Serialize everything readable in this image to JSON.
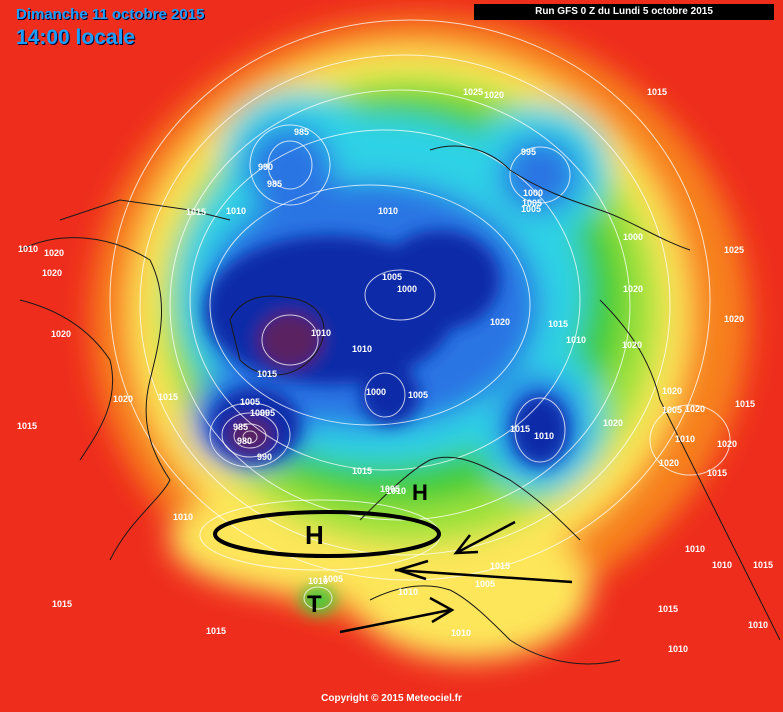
{
  "header": {
    "date": "Dimanche 11 octobre 2015",
    "time": "14:00 locale",
    "run": "Run GFS 0 Z du Lundi 5 octobre 2015"
  },
  "footer": {
    "copyright": "Copyright © 2015 Meteociel.fr"
  },
  "pressure_systems": [
    "H",
    "H",
    "T"
  ],
  "isobar_labels": [
    "1010",
    "1025",
    "1020",
    "1015",
    "985",
    "990",
    "985",
    "995",
    "1000",
    "1005",
    "1010",
    "1015",
    "1010",
    "1005",
    "1000",
    "1025",
    "1020",
    "1020",
    "1020",
    "1020",
    "1005",
    "1000",
    "1020",
    "1015",
    "1010",
    "1020",
    "1020",
    "1010",
    "1010",
    "1020",
    "1015",
    "1015",
    "1020",
    "1005",
    "1005",
    "1000",
    "1005",
    "1000",
    "995",
    "985",
    "980",
    "990",
    "1020",
    "1015",
    "1010",
    "1015",
    "1010",
    "1015",
    "1020",
    "1020",
    "1020",
    "1015",
    "1005",
    "1010",
    "1010",
    "1015",
    "1010",
    "1005",
    "1015",
    "1005",
    "1010",
    "1015",
    "1015",
    "1010",
    "1010",
    "1010",
    "1015",
    "1010",
    "1015",
    "1010"
  ],
  "colors": {
    "red": "#ee2d1d",
    "orange": "#f7801b",
    "yellow": "#fde65a",
    "lime": "#9fe23a",
    "green": "#3fcc3a",
    "cyan": "#2fd2e6",
    "blue": "#2a74e4",
    "navy": "#0a2aa8",
    "purple": "#5a2360"
  }
}
